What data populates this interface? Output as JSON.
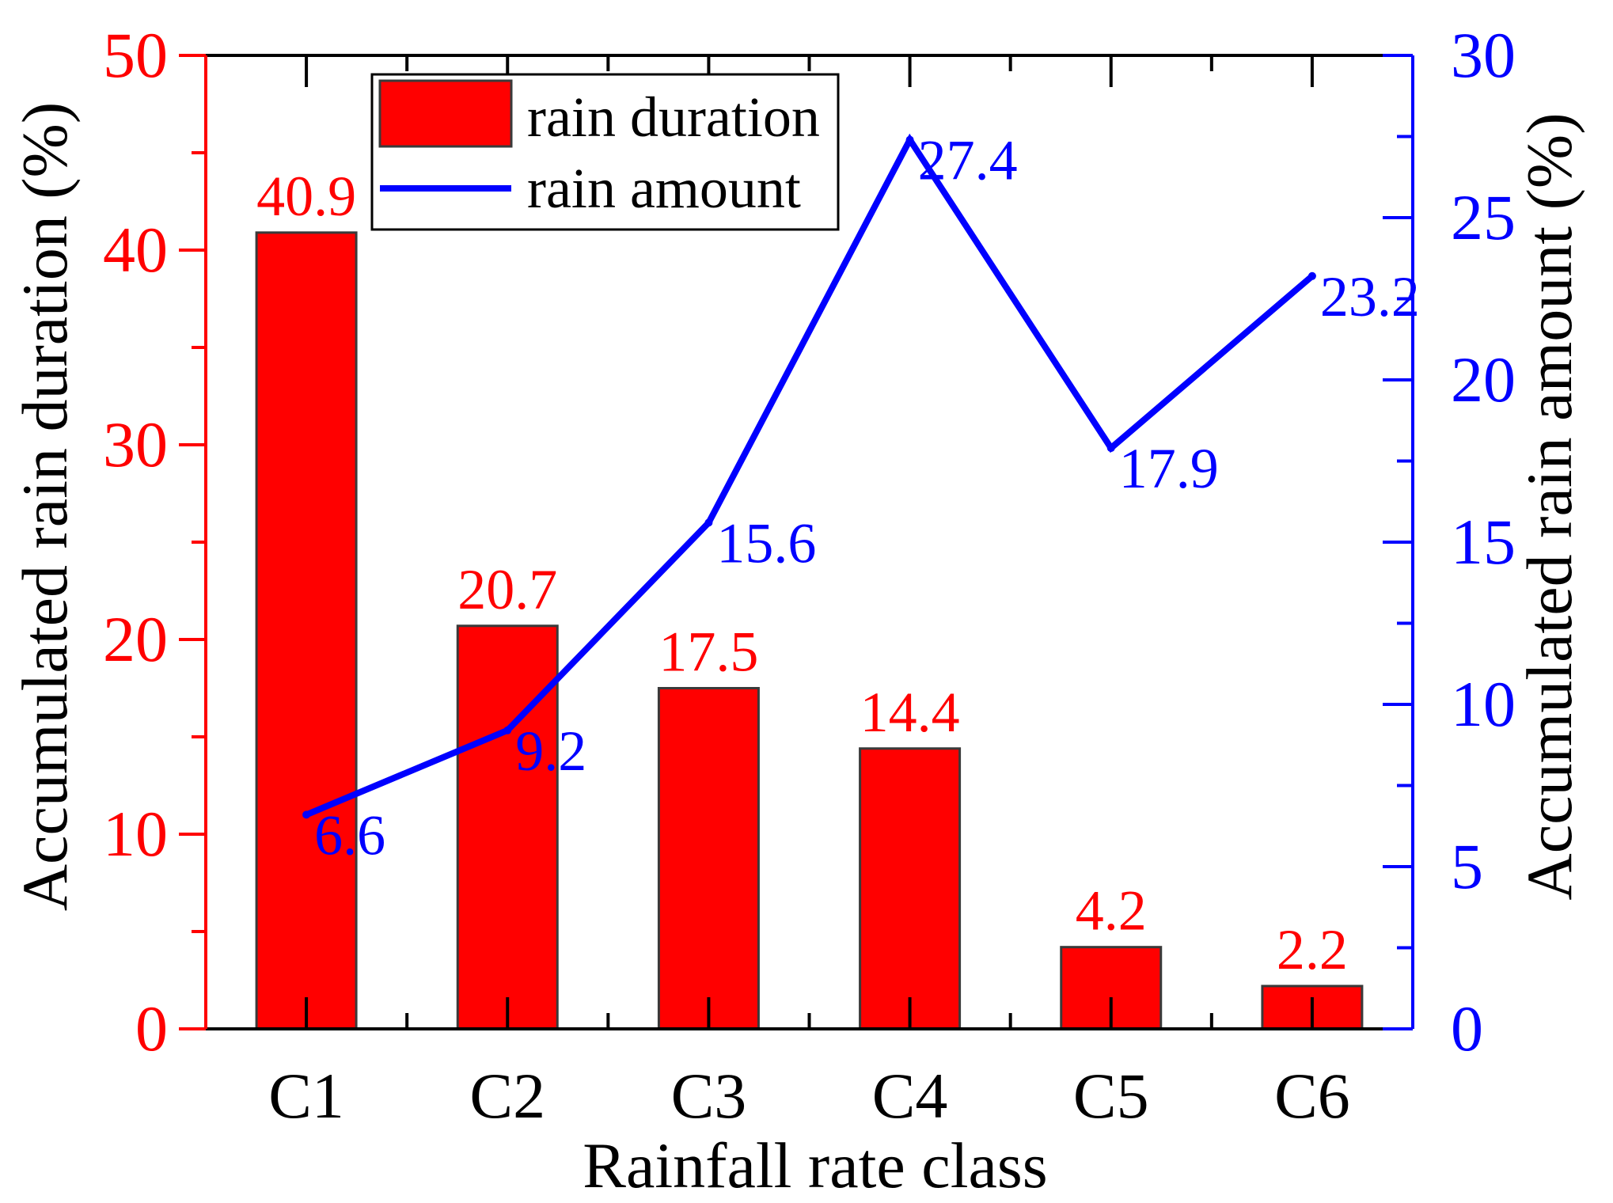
{
  "chart_data": {
    "type": "bar",
    "title": "",
    "xlabel": "Rainfall rate class",
    "ylabel_left": "Accumulated rain duration (%)",
    "ylabel_right": "Accumulated rain amount (%)",
    "categories": [
      "C1",
      "C2",
      "C3",
      "C4",
      "C5",
      "C6"
    ],
    "ylim_left": [
      0,
      50
    ],
    "ylim_right": [
      0,
      30
    ],
    "yticks_left": [
      "0",
      "10",
      "20",
      "30",
      "40",
      "50"
    ],
    "yticks_right": [
      "0",
      "5",
      "10",
      "15",
      "20",
      "25",
      "30"
    ],
    "grid": false,
    "legend_position": "top-center",
    "series": [
      {
        "name": "rain duration",
        "kind": "bar",
        "axis": "left",
        "values": [
          40.9,
          20.7,
          17.5,
          14.4,
          4.2,
          2.2
        ],
        "labels": [
          "40.9",
          "20.7",
          "17.5",
          "14.4",
          "4.2",
          "2.2"
        ]
      },
      {
        "name": "rain amount",
        "kind": "line",
        "axis": "right",
        "values": [
          6.6,
          9.2,
          15.6,
          27.4,
          17.9,
          23.2
        ],
        "labels": [
          "6.6",
          "9.2",
          "15.6",
          "27.4",
          "17.9",
          "23.2"
        ]
      }
    ],
    "colors": {
      "bar_fill": "#ff0000",
      "bar_stroke": "#3a3a3a",
      "line": "#0000ff",
      "left_axis": "#ff0000",
      "right_axis": "#0000ff",
      "frame": "#000000",
      "text": "#000000"
    }
  }
}
